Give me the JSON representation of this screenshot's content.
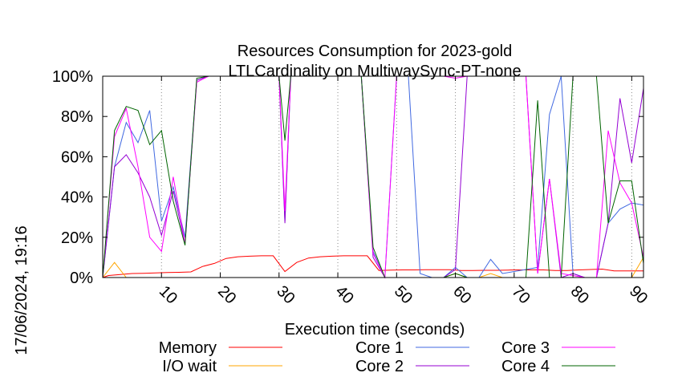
{
  "chart_data": {
    "type": "line",
    "title": "Resources Consumption for 2023-gold",
    "subtitle": "LTLCardinality on MultiwaySync-PT-none",
    "xlabel": "Execution time (seconds)",
    "ylabel": "",
    "side_label": "17/06/2024, 19:16",
    "xlim": [
      0,
      92
    ],
    "ylim": [
      0,
      100
    ],
    "x_ticks": [
      10,
      20,
      30,
      40,
      50,
      60,
      70,
      80,
      90
    ],
    "y_ticks": [
      0,
      20,
      40,
      60,
      80,
      100
    ],
    "y_tick_labels": [
      "0%",
      "20%",
      "40%",
      "60%",
      "80%",
      "100%"
    ],
    "grid": "vertical dotted at x ticks",
    "legend_position": "bottom",
    "series": [
      {
        "name": "Memory",
        "color": "#ff0000",
        "x": [
          0,
          1,
          3,
          5,
          7,
          9,
          11,
          13,
          15,
          17,
          19,
          21,
          23,
          25,
          27,
          29,
          31,
          33,
          35,
          37,
          39,
          41,
          43,
          45,
          47,
          49,
          51,
          53,
          55,
          57,
          59,
          61,
          63,
          65,
          67,
          69,
          71,
          73,
          75,
          77,
          79,
          81,
          83,
          85,
          87,
          89,
          91,
          92
        ],
        "values": [
          0,
          1,
          1.5,
          2,
          2.1,
          2.3,
          2.5,
          2.6,
          2.8,
          5.5,
          7,
          9.5,
          10.3,
          10.6,
          10.8,
          10.8,
          3,
          7.5,
          9.7,
          10.3,
          10.6,
          10.8,
          10.8,
          10.8,
          3.5,
          3.7,
          3.8,
          3.8,
          3.9,
          3.9,
          3.9,
          3.5,
          3.5,
          3.6,
          3.6,
          3.7,
          3.8,
          3.8,
          3.8,
          3.5,
          3.5,
          3.8,
          4,
          4.2,
          3.3,
          3.3,
          3.3,
          3.3
        ]
      },
      {
        "name": "I/O wait",
        "color": "#ffa500",
        "x": [
          0,
          2,
          4,
          6,
          8,
          10,
          12,
          14,
          16,
          18,
          20,
          22,
          24,
          26,
          28,
          30,
          32,
          34,
          36,
          38,
          40,
          42,
          44,
          46,
          48,
          50,
          52,
          54,
          56,
          58,
          60,
          62,
          64,
          66,
          68,
          70,
          72,
          74,
          76,
          78,
          80,
          82,
          84,
          86,
          88,
          90,
          92
        ],
        "values": [
          0,
          7.5,
          0,
          0,
          0,
          0,
          0,
          0,
          0,
          0,
          0,
          0,
          0,
          0,
          0,
          0,
          0,
          0,
          0,
          0,
          0,
          0,
          0,
          0,
          0,
          0,
          0,
          0,
          0,
          0,
          2,
          0,
          0,
          2,
          0,
          0,
          0,
          0,
          0,
          0,
          0,
          0,
          0,
          0,
          0,
          0,
          10
        ]
      },
      {
        "name": "Core 1",
        "color": "#4169e1",
        "x": [
          0,
          2,
          4,
          6,
          8,
          10,
          12,
          14,
          16,
          18,
          20,
          22,
          24,
          26,
          28,
          30,
          31,
          32,
          34,
          36,
          38,
          40,
          42,
          44,
          46,
          48,
          50,
          52,
          54,
          56,
          58,
          60,
          62,
          64,
          66,
          68,
          70,
          72,
          74,
          76,
          78,
          80,
          82,
          84,
          86,
          88,
          90,
          92
        ],
        "values": [
          0,
          55,
          77,
          67,
          83,
          28,
          45,
          20,
          98,
          100,
          100,
          100,
          100,
          100,
          100,
          100,
          28,
          100,
          100,
          100,
          100,
          100,
          100,
          100,
          13,
          0,
          100,
          100,
          2,
          0,
          0,
          5,
          0,
          0,
          9,
          2,
          3,
          4,
          5,
          81,
          100,
          2,
          0,
          0,
          27,
          34,
          37,
          36
        ]
      },
      {
        "name": "Core 2",
        "color": "#9400d3",
        "x": [
          0,
          2,
          4,
          6,
          8,
          10,
          12,
          14,
          16,
          18,
          20,
          22,
          24,
          26,
          28,
          30,
          31,
          32,
          34,
          36,
          38,
          40,
          42,
          44,
          46,
          48,
          50,
          52,
          54,
          56,
          58,
          60,
          62,
          64,
          66,
          68,
          70,
          72,
          74,
          76,
          78,
          80,
          82,
          84,
          86,
          88,
          90,
          92
        ],
        "values": [
          0,
          55,
          61,
          52,
          40,
          21,
          43,
          17,
          98,
          100,
          100,
          100,
          100,
          100,
          100,
          100,
          27,
          100,
          100,
          100,
          100,
          100,
          100,
          100,
          10,
          0,
          0,
          0,
          0,
          0,
          0,
          4,
          100,
          100,
          100,
          100,
          100,
          100,
          2,
          49,
          0,
          2,
          0,
          0,
          27,
          89,
          57,
          94
        ]
      },
      {
        "name": "Core 3",
        "color": "#ff00ff",
        "x": [
          0,
          2,
          4,
          6,
          8,
          10,
          12,
          14,
          16,
          18,
          20,
          22,
          24,
          26,
          28,
          30,
          31,
          32,
          34,
          36,
          38,
          40,
          42,
          44,
          46,
          48,
          50,
          52,
          54,
          56,
          58,
          60,
          62,
          64,
          66,
          68,
          70,
          72,
          74,
          76,
          78,
          80,
          82,
          84,
          86,
          88,
          90,
          92
        ],
        "values": [
          0,
          70,
          84,
          55,
          20,
          13,
          50,
          17,
          97,
          100,
          100,
          100,
          100,
          100,
          100,
          100,
          33,
          100,
          100,
          100,
          100,
          100,
          100,
          100,
          12,
          0,
          100,
          100,
          100,
          100,
          100,
          99,
          100,
          100,
          100,
          100,
          100,
          100,
          2,
          49,
          2,
          1,
          0,
          0,
          73,
          47,
          37,
          10
        ]
      },
      {
        "name": "Core 4",
        "color": "#006400",
        "x": [
          0,
          2,
          4,
          6,
          8,
          10,
          12,
          14,
          16,
          18,
          20,
          22,
          24,
          26,
          28,
          30,
          31,
          32,
          34,
          36,
          38,
          40,
          42,
          44,
          46,
          48,
          50,
          52,
          54,
          56,
          58,
          60,
          62,
          64,
          66,
          68,
          70,
          72,
          74,
          76,
          78,
          80,
          82,
          84,
          86,
          88,
          90,
          92
        ],
        "values": [
          0,
          73,
          85,
          83,
          66,
          73,
          38,
          16,
          99,
          100,
          100,
          100,
          100,
          100,
          100,
          100,
          68,
          100,
          100,
          100,
          100,
          100,
          100,
          100,
          15,
          0,
          0,
          0,
          0,
          0,
          0,
          2,
          0,
          0,
          0,
          0,
          0,
          0,
          88,
          0,
          0,
          100,
          100,
          100,
          27,
          48,
          48,
          7
        ]
      }
    ]
  }
}
